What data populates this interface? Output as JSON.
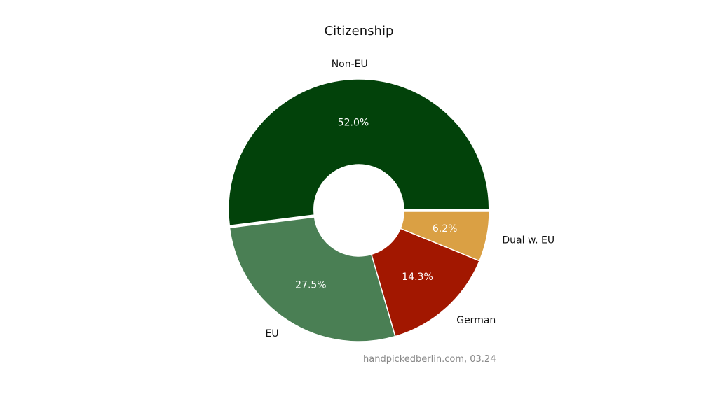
{
  "chart_data": {
    "type": "pie",
    "variant": "donut",
    "title": "Citizenship",
    "categories": [
      "Non-EU",
      "EU",
      "German",
      "Dual w. EU"
    ],
    "values": [
      52.0,
      27.5,
      14.3,
      6.2
    ],
    "value_labels": [
      "52.0%",
      "27.5%",
      "14.3%",
      "6.2%"
    ],
    "colors": [
      "#02420a",
      "#4a7f54",
      "#a21700",
      "#daa044"
    ],
    "start_angle_deg": 0,
    "direction": "counterclockwise",
    "exploded": [
      "Non-EU"
    ],
    "annotation": "handpickedberlin.com, 03.24"
  }
}
